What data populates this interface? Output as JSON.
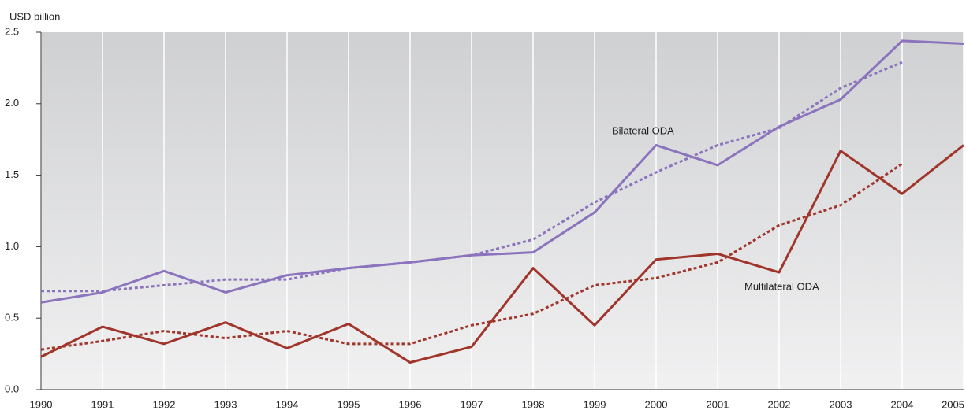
{
  "chart_data": {
    "type": "line",
    "y_axis_label": "USD billion",
    "x": [
      1990,
      1991,
      1992,
      1993,
      1994,
      1995,
      1996,
      1997,
      1998,
      1999,
      2000,
      2001,
      2002,
      2003,
      2004,
      2005
    ],
    "xlim": [
      1990,
      2005
    ],
    "xticks": [
      1990,
      1991,
      1992,
      1993,
      1994,
      1995,
      1996,
      1997,
      1998,
      1999,
      2000,
      2001,
      2002,
      2003,
      2004,
      2005
    ],
    "ylim": [
      0,
      2.5
    ],
    "yticks": [
      {
        "value": 0,
        "label": "0.0"
      },
      0.5,
      {
        "value": 1,
        "label": "1.0"
      },
      1.5,
      {
        "value": 2,
        "label": "2.0"
      },
      2.5
    ],
    "grid": true,
    "series": [
      {
        "name": "Bilateral ODA",
        "color": "#8b73bd",
        "dashed": false,
        "values": [
          0.61,
          0.68,
          0.83,
          0.68,
          0.8,
          0.85,
          0.89,
          0.94,
          0.96,
          1.24,
          1.71,
          1.57,
          1.84,
          2.03,
          2.44,
          2.42
        ]
      },
      {
        "color": "#8b73bd",
        "dashed": true,
        "values": [
          0.69,
          0.69,
          0.73,
          0.77,
          0.77,
          0.85,
          0.89,
          0.94,
          1.05,
          1.31,
          1.52,
          1.71,
          1.83,
          2.11,
          2.29,
          null
        ]
      },
      {
        "name": "Multilateral ODA",
        "color": "#a0352b",
        "dashed": false,
        "values": [
          0.23,
          0.44,
          0.32,
          0.47,
          0.29,
          0.46,
          0.19,
          0.3,
          0.85,
          0.45,
          0.91,
          0.95,
          0.82,
          1.67,
          1.37,
          1.71
        ]
      },
      {
        "color": "#a0352b",
        "dashed": true,
        "values": [
          0.28,
          0.34,
          0.41,
          0.36,
          0.41,
          0.32,
          0.32,
          0.45,
          0.53,
          0.73,
          0.78,
          0.89,
          1.15,
          1.29,
          1.58,
          null
        ]
      }
    ]
  }
}
